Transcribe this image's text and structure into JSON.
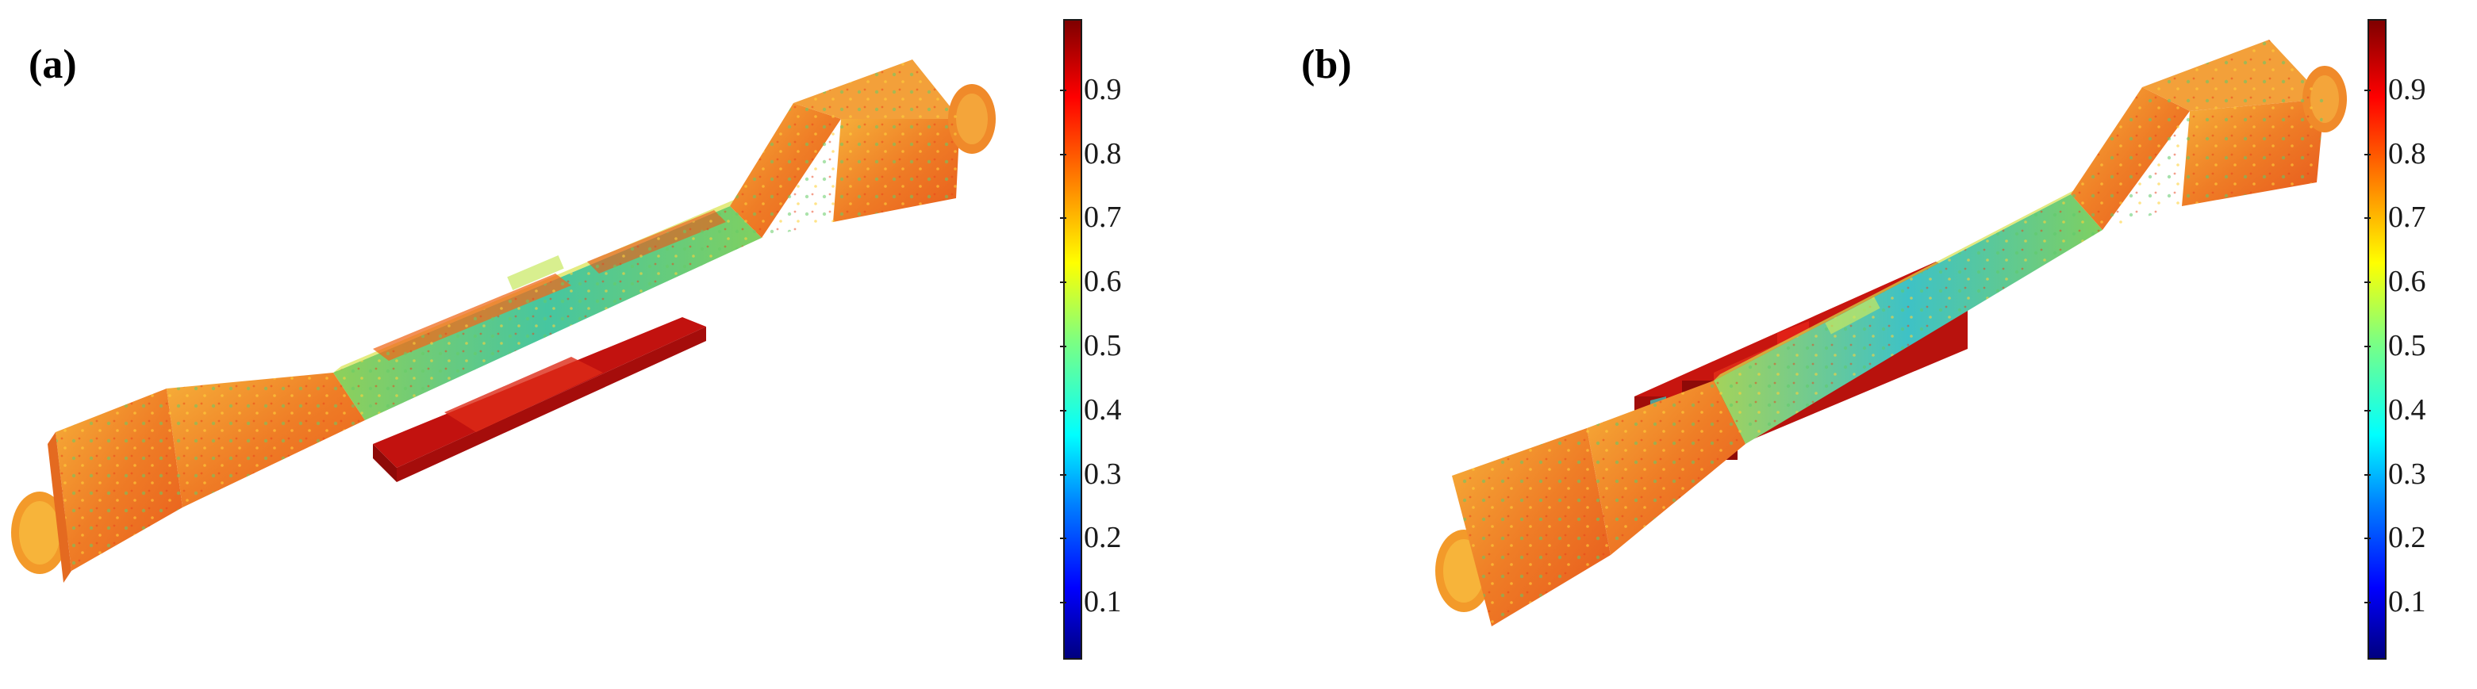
{
  "panels": [
    {
      "label": "(a)",
      "colorbar": {
        "ticks": [
          "0.9",
          "0.8",
          "0.7",
          "0.6",
          "0.5",
          "0.4",
          "0.3",
          "0.2",
          "0.1"
        ],
        "tick_values": [
          0.9,
          0.8,
          0.7,
          0.6,
          0.5,
          0.4,
          0.3,
          0.2,
          0.1
        ],
        "range": [
          0.0,
          1.0
        ],
        "colormap": "jet"
      }
    },
    {
      "label": "(b)",
      "colorbar": {
        "ticks": [
          "0.9",
          "0.8",
          "0.7",
          "0.6",
          "0.5",
          "0.4",
          "0.3",
          "0.2",
          "0.1"
        ],
        "tick_values": [
          0.9,
          0.8,
          0.7,
          0.6,
          0.5,
          0.4,
          0.3,
          0.2,
          0.1
        ],
        "range": [
          0.0,
          1.0
        ],
        "colormap": "jet"
      }
    }
  ],
  "colors": {
    "specimen_body": "#f08a2a",
    "specimen_highlight": "#f5c13a",
    "gauge_region": "#58c98a",
    "gauge_low": "#38c8d8",
    "insert_block": "#b01010"
  }
}
